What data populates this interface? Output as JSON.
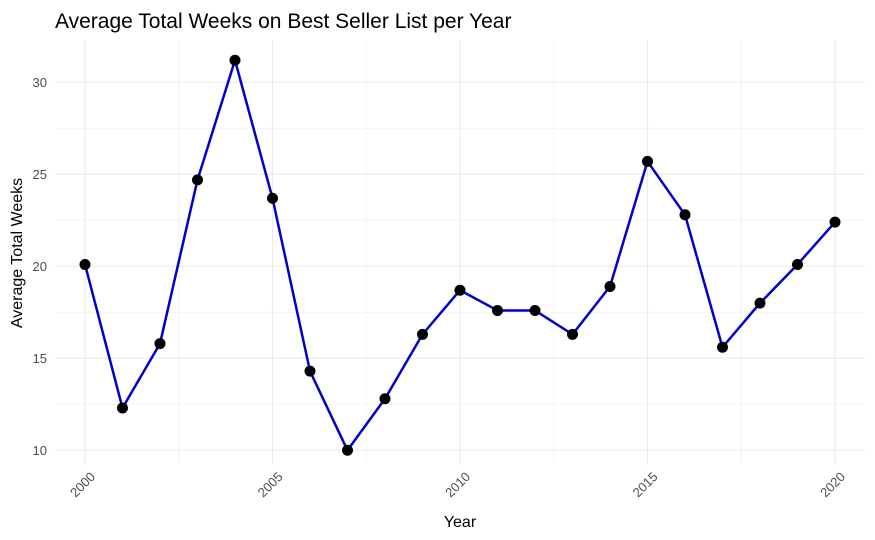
{
  "chart_data": {
    "type": "line",
    "title": "Average Total Weeks on Best Seller List per Year",
    "xlabel": "Year",
    "ylabel": "Average Total Weeks",
    "xlim": [
      1999.2,
      2020.8
    ],
    "ylim": [
      9.2,
      32.3
    ],
    "x_ticks": [
      2000,
      2005,
      2010,
      2015,
      2020
    ],
    "y_ticks": [
      10,
      15,
      20,
      25,
      30
    ],
    "grid": true,
    "line_color": "#0000cc",
    "point_color": "#000000",
    "series": [
      {
        "x": [
          2000,
          2001,
          2002,
          2003,
          2004,
          2005,
          2006,
          2007,
          2008,
          2009,
          2010,
          2011,
          2012,
          2013,
          2014,
          2015,
          2016,
          2017,
          2018,
          2019,
          2020
        ],
        "values": [
          20.1,
          12.3,
          15.8,
          24.7,
          31.2,
          23.7,
          14.3,
          10.0,
          12.8,
          16.3,
          18.7,
          17.6,
          17.6,
          16.3,
          18.9,
          25.7,
          22.8,
          15.6,
          18.0,
          20.1,
          22.4
        ]
      }
    ]
  }
}
